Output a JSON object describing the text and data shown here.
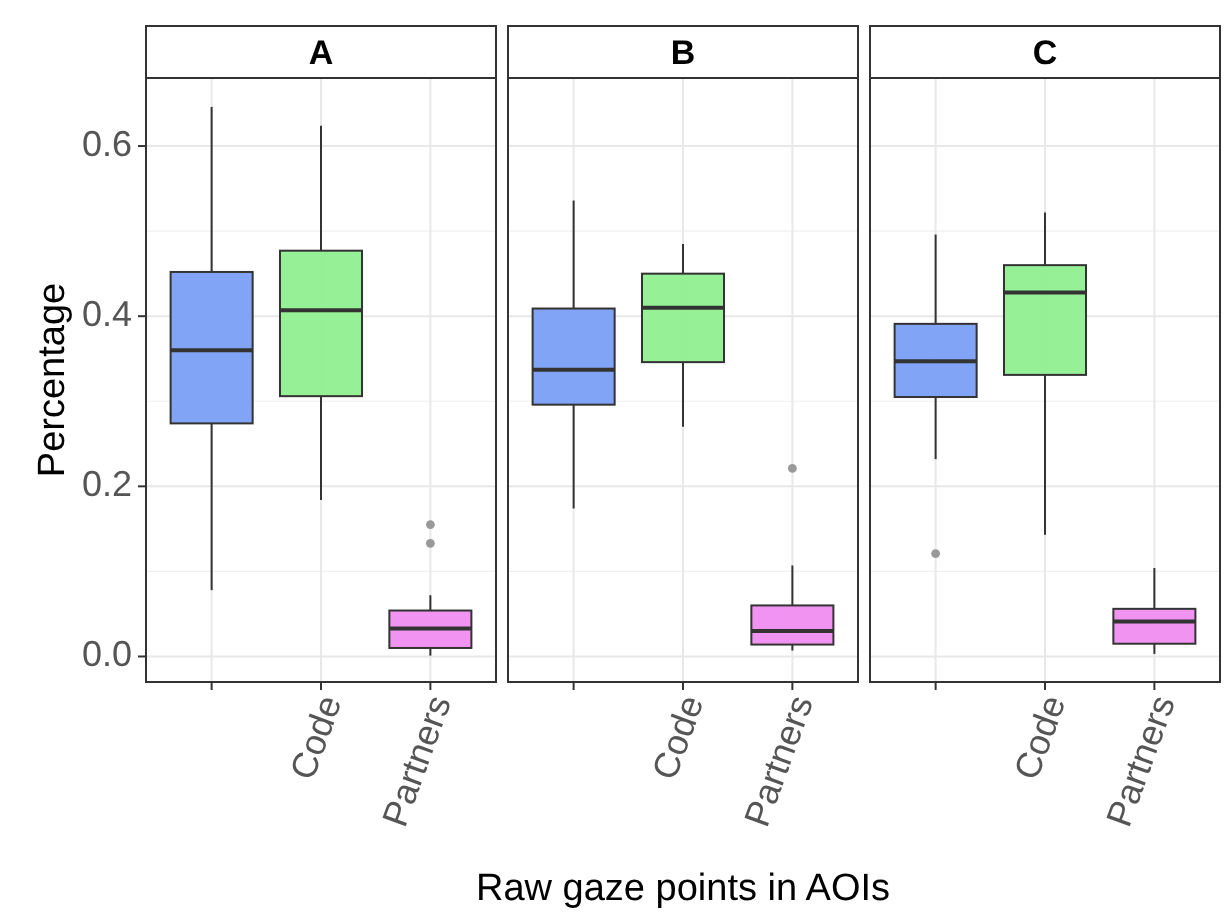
{
  "chart_data": [
    {
      "type": "box",
      "title": "A",
      "ylabel": "Percentage",
      "categories": [
        null,
        "Code",
        "Partners"
      ],
      "colors": [
        "#7b9ff5",
        "#90f090",
        "#f08ef0"
      ],
      "ylim": [
        -0.03,
        0.68
      ],
      "yticks": [
        {
          "value": 0,
          "label": "0.0"
        },
        {
          "value": 0.2,
          "label": "0.2"
        },
        {
          "value": 0.4,
          "label": "0.4"
        },
        {
          "value": 0.6,
          "label": "0.6"
        }
      ],
      "grid": true,
      "boxes": [
        {
          "low": 0.078,
          "q1": 0.274,
          "median": 0.36,
          "q3": 0.452,
          "high": 0.646
        },
        {
          "low": 0.184,
          "q1": 0.306,
          "median": 0.407,
          "q3": 0.477,
          "high": 0.624
        },
        {
          "low": 0.001,
          "q1": 0.01,
          "median": 0.033,
          "q3": 0.054,
          "high": 0.072,
          "outliers": [
            0.155,
            0.133
          ]
        }
      ]
    },
    {
      "type": "box",
      "title": "B",
      "xlabel": "Raw gaze points in AOIs",
      "categories": [
        null,
        "Code",
        "Partners"
      ],
      "colors": [
        "#7b9ff5",
        "#90f090",
        "#f08ef0"
      ],
      "ylim": [
        -0.03,
        0.68
      ],
      "yticks": [
        {
          "value": 0,
          "label": null
        },
        {
          "value": 0.2,
          "label": null
        },
        {
          "value": 0.4,
          "label": null
        },
        {
          "value": 0.6,
          "label": null
        }
      ],
      "grid": true,
      "tick_labels": "x",
      "boxes": [
        {
          "low": 0.174,
          "q1": 0.296,
          "median": 0.337,
          "q3": 0.409,
          "high": 0.536
        },
        {
          "low": 0.27,
          "q1": 0.346,
          "median": 0.41,
          "q3": 0.45,
          "high": 0.485
        },
        {
          "low": 0.007,
          "q1": 0.014,
          "median": 0.03,
          "q3": 0.06,
          "high": 0.107,
          "outliers": [
            0.221
          ]
        }
      ]
    },
    {
      "type": "box",
      "title": "C",
      "categories": [
        null,
        "Code",
        "Partners"
      ],
      "colors": [
        "#7b9ff5",
        "#90f090",
        "#f08ef0"
      ],
      "ylim": [
        -0.03,
        0.68
      ],
      "yticks": [
        {
          "value": 0,
          "label": null
        },
        {
          "value": 0.2,
          "label": null
        },
        {
          "value": 0.4,
          "label": null
        },
        {
          "value": 0.6,
          "label": null
        }
      ],
      "grid": true,
      "tick_labels": "x",
      "boxes": [
        {
          "low": 0.232,
          "q1": 0.305,
          "median": 0.347,
          "q3": 0.391,
          "high": 0.496,
          "outliers": [
            0.121
          ]
        },
        {
          "low": 0.143,
          "q1": 0.331,
          "median": 0.428,
          "q3": 0.46,
          "high": 0.522
        },
        {
          "low": 0.003,
          "q1": 0.015,
          "median": 0.041,
          "q3": 0.056,
          "high": 0.104
        }
      ]
    }
  ]
}
